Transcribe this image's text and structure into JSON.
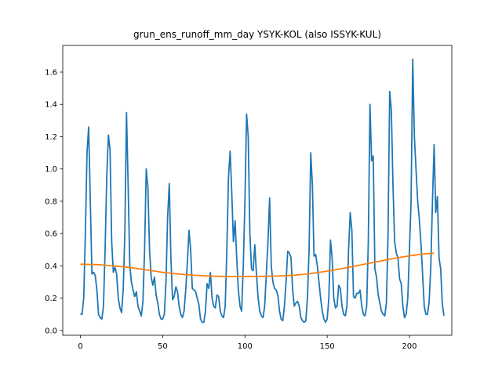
{
  "chart_data": {
    "type": "line",
    "title": "grun_ens_runoff_mm_day YSYK-KOL (also ISSYK-KUL)",
    "xlabel": "",
    "ylabel": "",
    "xlim": [
      -10.75,
      225.75
    ],
    "ylim": [
      -0.03,
      1.765
    ],
    "xticks": [
      0,
      50,
      100,
      150,
      200
    ],
    "yticks": [
      0.0,
      0.2,
      0.4,
      0.6,
      0.8,
      1.0,
      1.2,
      1.4,
      1.6
    ],
    "grid": false,
    "series": [
      {
        "color": "#1f77b4",
        "x_start": 0,
        "x_step": 1,
        "values": [
          0.1,
          0.1,
          0.2,
          0.6,
          1.1,
          1.26,
          0.8,
          0.35,
          0.36,
          0.34,
          0.25,
          0.1,
          0.08,
          0.07,
          0.15,
          0.5,
          0.95,
          1.21,
          1.12,
          0.55,
          0.36,
          0.39,
          0.35,
          0.2,
          0.14,
          0.11,
          0.25,
          0.6,
          1.35,
          0.9,
          0.4,
          0.3,
          0.25,
          0.21,
          0.24,
          0.15,
          0.12,
          0.09,
          0.18,
          0.5,
          1.0,
          0.89,
          0.5,
          0.33,
          0.28,
          0.33,
          0.22,
          0.17,
          0.1,
          0.07,
          0.07,
          0.1,
          0.3,
          0.7,
          0.91,
          0.45,
          0.19,
          0.21,
          0.27,
          0.24,
          0.15,
          0.1,
          0.08,
          0.12,
          0.25,
          0.42,
          0.62,
          0.5,
          0.26,
          0.25,
          0.24,
          0.2,
          0.16,
          0.07,
          0.05,
          0.05,
          0.12,
          0.29,
          0.26,
          0.36,
          0.2,
          0.15,
          0.14,
          0.22,
          0.21,
          0.12,
          0.09,
          0.08,
          0.15,
          0.5,
          0.95,
          1.11,
          0.85,
          0.55,
          0.68,
          0.45,
          0.25,
          0.15,
          0.12,
          0.4,
          0.8,
          1.34,
          1.2,
          0.6,
          0.38,
          0.37,
          0.53,
          0.35,
          0.2,
          0.12,
          0.09,
          0.08,
          0.15,
          0.35,
          0.55,
          0.82,
          0.4,
          0.3,
          0.26,
          0.25,
          0.22,
          0.12,
          0.07,
          0.06,
          0.15,
          0.3,
          0.49,
          0.48,
          0.45,
          0.25,
          0.15,
          0.17,
          0.18,
          0.15,
          0.08,
          0.06,
          0.05,
          0.06,
          0.2,
          0.5,
          1.1,
          0.9,
          0.46,
          0.47,
          0.4,
          0.3,
          0.2,
          0.12,
          0.07,
          0.05,
          0.07,
          0.2,
          0.56,
          0.45,
          0.2,
          0.14,
          0.15,
          0.28,
          0.26,
          0.15,
          0.1,
          0.09,
          0.15,
          0.5,
          0.73,
          0.62,
          0.21,
          0.2,
          0.23,
          0.23,
          0.25,
          0.15,
          0.1,
          0.09,
          0.15,
          0.55,
          1.4,
          1.05,
          1.08,
          0.38,
          0.33,
          0.22,
          0.17,
          0.12,
          0.1,
          0.09,
          0.17,
          0.6,
          1.48,
          1.36,
          0.9,
          0.55,
          0.48,
          0.45,
          0.32,
          0.29,
          0.15,
          0.08,
          0.1,
          0.2,
          0.5,
          0.8,
          1.68,
          1.2,
          1.0,
          0.8,
          0.69,
          0.54,
          0.35,
          0.15,
          0.1,
          0.1,
          0.18,
          0.4,
          0.8,
          1.15,
          0.73,
          0.83,
          0.45,
          0.38,
          0.16,
          0.09
        ]
      },
      {
        "color": "#ff7f0e",
        "x": [
          0,
          10,
          20,
          30,
          40,
          50,
          60,
          70,
          80,
          90,
          100,
          110,
          120,
          130,
          140,
          150,
          160,
          170,
          180,
          190,
          200,
          210,
          215
        ],
        "values": [
          0.41,
          0.408,
          0.4,
          0.39,
          0.375,
          0.36,
          0.349,
          0.341,
          0.336,
          0.334,
          0.334,
          0.335,
          0.337,
          0.342,
          0.352,
          0.367,
          0.385,
          0.405,
          0.425,
          0.445,
          0.462,
          0.475,
          0.478
        ]
      }
    ]
  }
}
